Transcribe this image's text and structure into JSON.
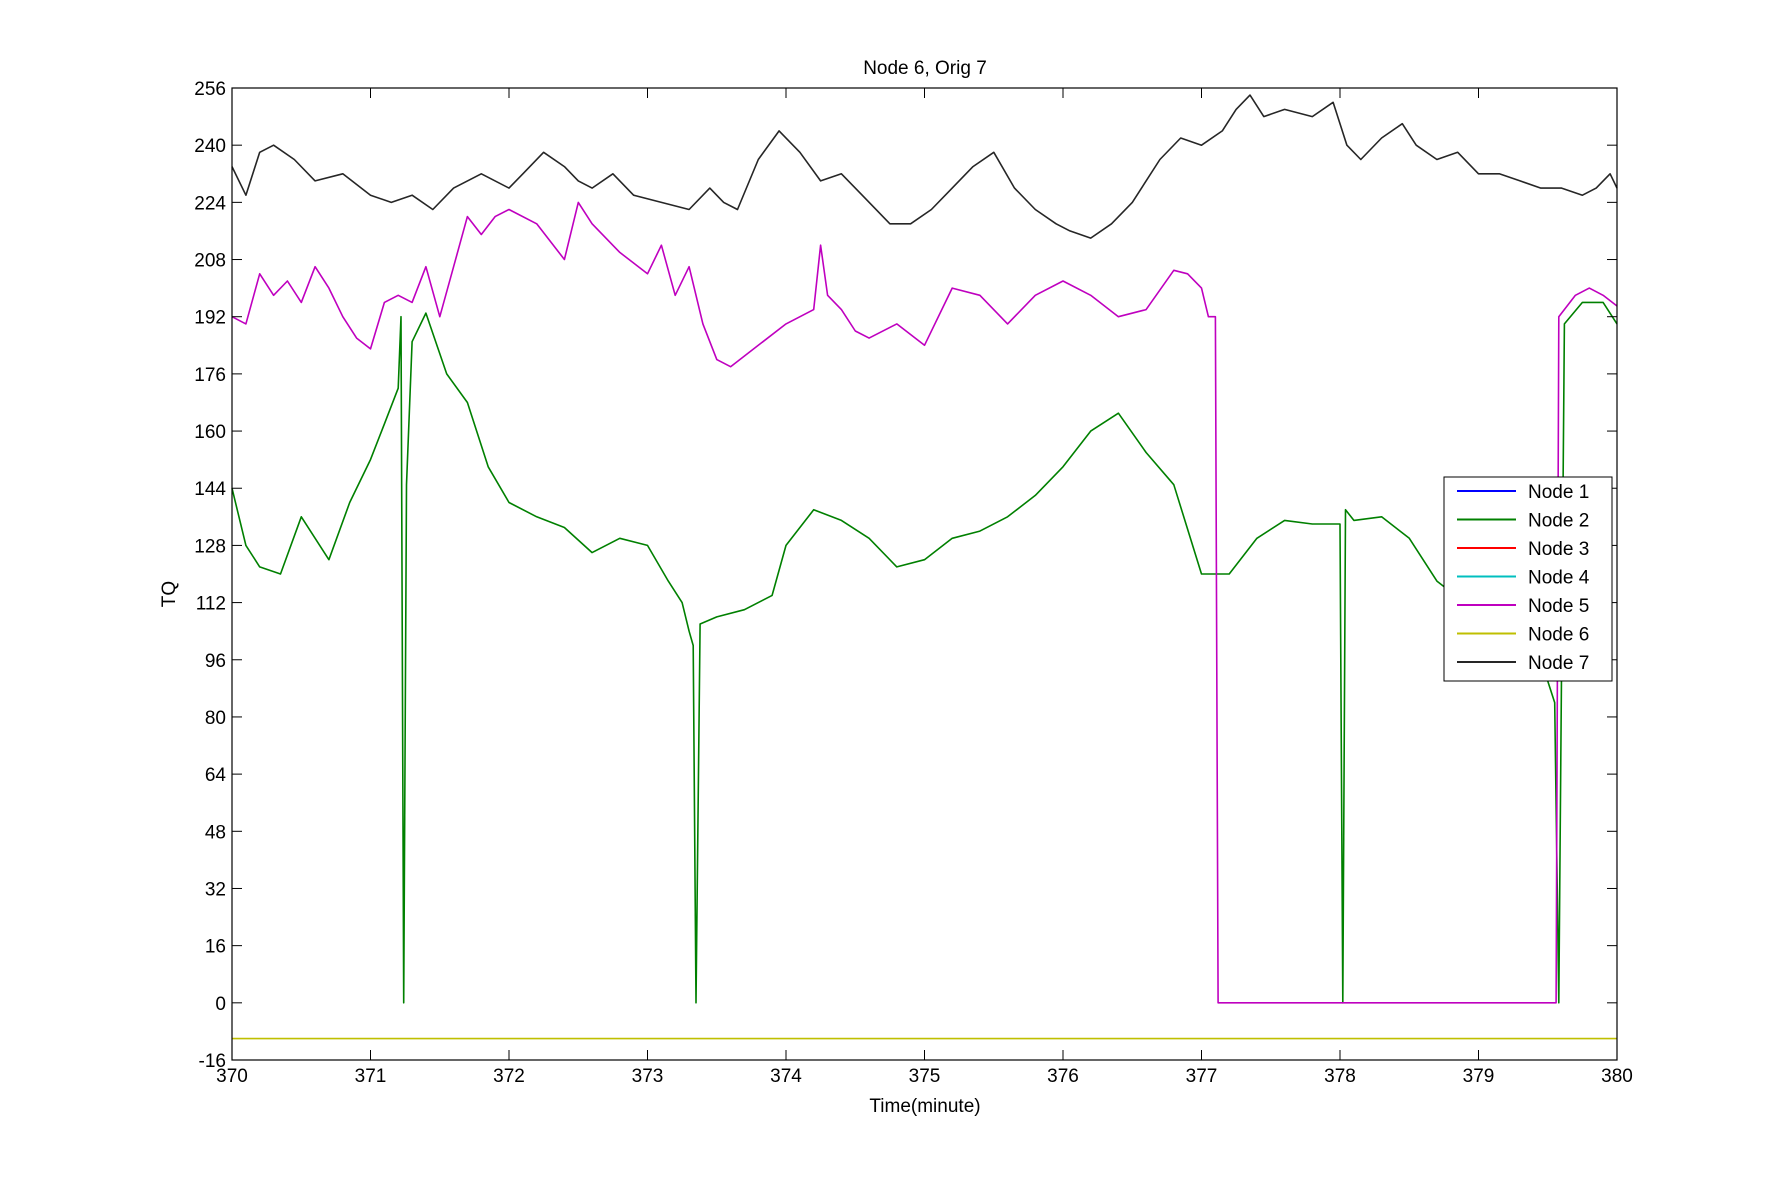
{
  "chart_data": {
    "type": "line",
    "title": "Node 6, Orig 7",
    "xlabel": "Time(minute)",
    "ylabel": "TQ",
    "xlim": [
      370,
      380
    ],
    "ylim": [
      -16,
      256
    ],
    "x_ticks": [
      "370",
      "371",
      "372",
      "373",
      "374",
      "375",
      "376",
      "377",
      "378",
      "379",
      "380"
    ],
    "y_ticks": [
      "-16",
      "0",
      "16",
      "32",
      "48",
      "64",
      "80",
      "96",
      "112",
      "128",
      "144",
      "160",
      "176",
      "192",
      "208",
      "224",
      "240",
      "256"
    ],
    "grid": false,
    "legend_position": "right-middle",
    "series": [
      {
        "name": "Node  1",
        "color": "#0000ff",
        "x": [],
        "y": []
      },
      {
        "name": "Node  2",
        "color": "#008000",
        "x": [
          370.0,
          370.1,
          370.2,
          370.35,
          370.5,
          370.7,
          370.85,
          371.0,
          371.1,
          371.2,
          371.22,
          371.24,
          371.26,
          371.3,
          371.4,
          371.55,
          371.7,
          371.85,
          372.0,
          372.2,
          372.4,
          372.6,
          372.8,
          373.0,
          373.15,
          373.25,
          373.3,
          373.33,
          373.35,
          373.38,
          373.5,
          373.7,
          373.9,
          374.0,
          374.2,
          374.4,
          374.6,
          374.8,
          375.0,
          375.2,
          375.4,
          375.6,
          375.8,
          376.0,
          376.2,
          376.4,
          376.6,
          376.8,
          377.0,
          377.2,
          377.4,
          377.6,
          377.8,
          378.0,
          378.02,
          378.04,
          378.1,
          378.3,
          378.5,
          378.7,
          378.9,
          379.0,
          379.2,
          379.4,
          379.5,
          379.55,
          379.58,
          379.62,
          379.75,
          379.9,
          380.0
        ],
        "y": [
          144,
          128,
          122,
          120,
          136,
          124,
          140,
          152,
          162,
          172,
          192,
          0,
          145,
          185,
          193,
          176,
          168,
          150,
          140,
          136,
          133,
          126,
          130,
          128,
          118,
          112,
          104,
          100,
          0,
          106,
          108,
          110,
          114,
          128,
          138,
          135,
          130,
          122,
          124,
          130,
          132,
          136,
          142,
          150,
          160,
          165,
          154,
          145,
          120,
          120,
          130,
          135,
          134,
          134,
          0,
          138,
          135,
          136,
          130,
          118,
          112,
          112,
          100,
          96,
          90,
          84,
          0,
          190,
          196,
          196,
          190
        ]
      },
      {
        "name": "Node  3",
        "color": "#ff0000",
        "x": [],
        "y": []
      },
      {
        "name": "Node  4",
        "color": "#00bfbf",
        "x": [],
        "y": []
      },
      {
        "name": "Node  5",
        "color": "#bf00bf",
        "x": [
          370.0,
          370.1,
          370.2,
          370.3,
          370.4,
          370.5,
          370.6,
          370.7,
          370.8,
          370.9,
          371.0,
          371.1,
          371.2,
          371.3,
          371.4,
          371.5,
          371.6,
          371.7,
          371.8,
          371.9,
          372.0,
          372.2,
          372.4,
          372.5,
          372.6,
          372.8,
          373.0,
          373.1,
          373.2,
          373.3,
          373.4,
          373.5,
          373.6,
          373.8,
          374.0,
          374.2,
          374.25,
          374.3,
          374.4,
          374.5,
          374.6,
          374.8,
          375.0,
          375.2,
          375.4,
          375.6,
          375.8,
          376.0,
          376.2,
          376.4,
          376.6,
          376.8,
          376.9,
          377.0,
          377.05,
          377.1,
          377.12,
          377.5,
          378.0,
          379.0,
          379.55,
          379.56,
          379.58,
          379.7,
          379.8,
          379.9,
          380.0
        ],
        "y": [
          192,
          190,
          204,
          198,
          202,
          196,
          206,
          200,
          192,
          186,
          183,
          196,
          198,
          196,
          206,
          192,
          206,
          220,
          215,
          220,
          222,
          218,
          208,
          224,
          218,
          210,
          204,
          212,
          198,
          206,
          190,
          180,
          178,
          184,
          190,
          194,
          212,
          198,
          194,
          188,
          186,
          190,
          184,
          200,
          198,
          190,
          198,
          202,
          198,
          192,
          194,
          205,
          204,
          200,
          192,
          192,
          0,
          0,
          0,
          0,
          0,
          0,
          192,
          198,
          200,
          198,
          195
        ]
      },
      {
        "name": "Node  6",
        "color": "#bfbf00",
        "x": [
          370,
          380
        ],
        "y": [
          -10,
          -10
        ]
      },
      {
        "name": "Node  7",
        "color": "#262626",
        "x": [
          370.0,
          370.1,
          370.2,
          370.3,
          370.45,
          370.6,
          370.8,
          371.0,
          371.15,
          371.3,
          371.45,
          371.6,
          371.8,
          372.0,
          372.1,
          372.25,
          372.4,
          372.5,
          372.6,
          372.75,
          372.9,
          373.1,
          373.3,
          373.45,
          373.55,
          373.65,
          373.8,
          373.95,
          374.1,
          374.25,
          374.4,
          374.55,
          374.75,
          374.9,
          375.05,
          375.2,
          375.35,
          375.5,
          375.65,
          375.8,
          375.95,
          376.05,
          376.2,
          376.35,
          376.5,
          376.7,
          376.85,
          377.0,
          377.15,
          377.25,
          377.35,
          377.45,
          377.6,
          377.8,
          377.95,
          378.05,
          378.15,
          378.3,
          378.45,
          378.55,
          378.7,
          378.85,
          379.0,
          379.15,
          379.3,
          379.45,
          379.6,
          379.75,
          379.85,
          379.95,
          380.0
        ],
        "y": [
          234,
          226,
          238,
          240,
          236,
          230,
          232,
          226,
          224,
          226,
          222,
          228,
          232,
          228,
          232,
          238,
          234,
          230,
          228,
          232,
          226,
          224,
          222,
          228,
          224,
          222,
          236,
          244,
          238,
          230,
          232,
          226,
          218,
          218,
          222,
          228,
          234,
          238,
          228,
          222,
          218,
          216,
          214,
          218,
          224,
          236,
          242,
          240,
          244,
          250,
          254,
          248,
          250,
          248,
          252,
          240,
          236,
          242,
          246,
          240,
          236,
          238,
          232,
          232,
          230,
          228,
          228,
          226,
          228,
          232,
          228
        ]
      }
    ]
  }
}
